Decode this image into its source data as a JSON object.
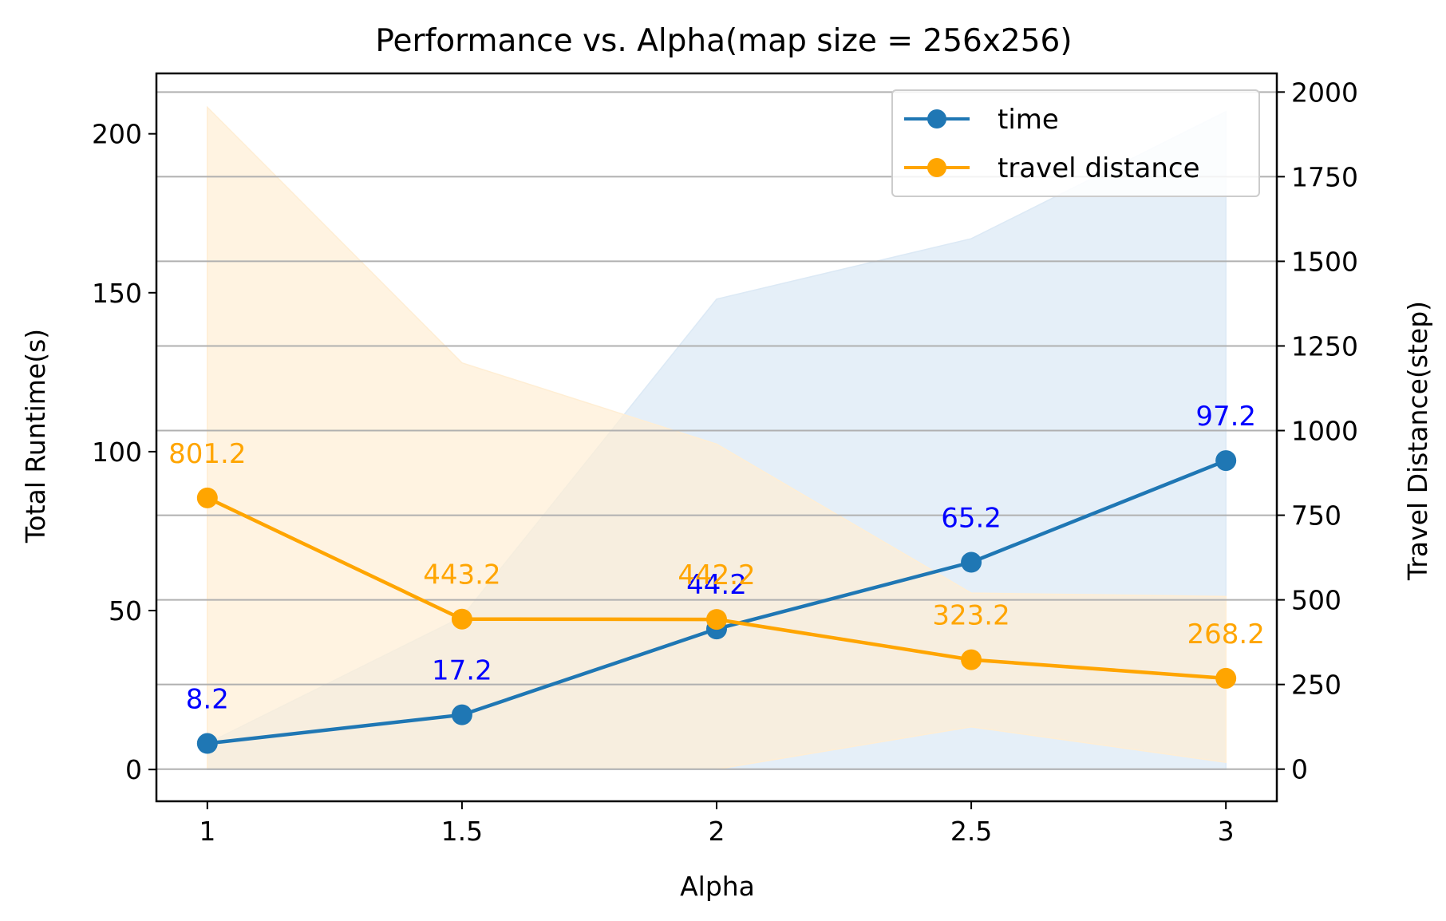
{
  "chart_data": {
    "type": "line",
    "title": "Performance vs. Alpha(map size = 256x256)",
    "xlabel": "Alpha",
    "ylabel_left": "Total Runtime(s)",
    "ylabel_right": "Travel Distance(step)",
    "x": [
      1,
      1.5,
      2,
      2.5,
      3
    ],
    "x_tick_labels": [
      "1",
      "1.5",
      "2",
      "2.5",
      "3"
    ],
    "xlim": [
      0.9,
      3.1
    ],
    "y_left_lim": [
      -10,
      219
    ],
    "y_left_ticks": [
      0,
      50,
      100,
      150,
      200
    ],
    "y_left_tick_labels": [
      "0",
      "50",
      "100",
      "150",
      "200"
    ],
    "y_right_lim": [
      -95,
      2055
    ],
    "y_right_ticks": [
      0,
      250,
      500,
      750,
      1000,
      1250,
      1500,
      1750,
      2000
    ],
    "y_right_tick_labels": [
      "0",
      "250",
      "500",
      "750",
      "1000",
      "1250",
      "1500",
      "1750",
      "2000"
    ],
    "grid": "horizontal lines on right axis ticks",
    "legend_position": "top-right",
    "series": [
      {
        "name": "time",
        "axis": "left",
        "color": "#1f77b4",
        "label_color": "#0000ff",
        "band_color": "#dce9f5",
        "values": [
          8.2,
          17.2,
          44.2,
          65.2,
          97.2
        ],
        "labels": [
          "8.2",
          "17.2",
          "44.2",
          "65.2",
          "97.2"
        ],
        "band_lower": [
          0,
          0,
          0,
          0,
          0
        ],
        "band_upper": [
          8.2,
          48,
          148,
          167,
          207
        ]
      },
      {
        "name": "travel distance",
        "axis": "right",
        "color": "#ffa500",
        "label_color": "#ffa500",
        "band_color": "#ffeed4",
        "values": [
          801.2,
          443.2,
          442.2,
          323.2,
          268.2
        ],
        "labels": [
          "801.2",
          "443.2",
          "442.2",
          "323.2",
          "268.2"
        ],
        "band_lower": [
          0,
          0,
          0,
          125,
          20
        ],
        "band_upper": [
          1955,
          1200,
          960,
          520,
          510
        ]
      }
    ]
  }
}
